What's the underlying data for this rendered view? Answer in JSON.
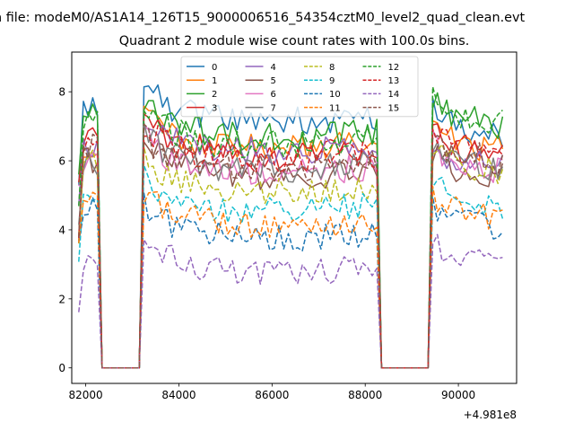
{
  "suptitle": "n file: modeM0/AS1A14_126T15_9000006516_54354cztM0_level2_quad_clean.evt",
  "chart_data": {
    "type": "line",
    "title": "Quadrant 2 module wise count rates with 100.0s bins.",
    "xlabel": "",
    "ylabel": "",
    "x_offset_label": "+4.981e8",
    "x_offset": 498100000,
    "xlim": [
      81700,
      91250
    ],
    "ylim": [
      -0.45,
      9.15
    ],
    "xticks": [
      82000,
      84000,
      86000,
      88000,
      90000
    ],
    "yticks": [
      0,
      2,
      4,
      6,
      8
    ],
    "grid": false,
    "legend_placement": "top-center",
    "legend_columns": 4,
    "gaps": [
      [
        82300,
        83200
      ],
      [
        88300,
        89400
      ]
    ],
    "segments": [
      [
        81850,
        82300
      ],
      [
        83200,
        88300
      ],
      [
        89400,
        91000
      ]
    ],
    "bin_width_s": 100,
    "series": [
      {
        "name": "0",
        "color": "#1f77b4",
        "dash": "solid",
        "seg_means": [
          7.4,
          7.3,
          7.0
        ]
      },
      {
        "name": "1",
        "color": "#ff7f0e",
        "dash": "solid",
        "seg_means": [
          6.5,
          6.5,
          6.6
        ]
      },
      {
        "name": "2",
        "color": "#2ca02c",
        "dash": "solid",
        "seg_means": [
          7.5,
          6.8,
          7.3
        ]
      },
      {
        "name": "3",
        "color": "#d62728",
        "dash": "solid",
        "seg_means": [
          6.6,
          6.3,
          6.4
        ]
      },
      {
        "name": "4",
        "color": "#9467bd",
        "dash": "solid",
        "seg_means": [
          6.3,
          6.4,
          6.1
        ]
      },
      {
        "name": "5",
        "color": "#8c564b",
        "dash": "solid",
        "seg_means": [
          6.0,
          5.7,
          5.8
        ]
      },
      {
        "name": "6",
        "color": "#e377c2",
        "dash": "solid",
        "seg_means": [
          6.1,
          5.8,
          6.0
        ]
      },
      {
        "name": "7",
        "color": "#7f7f7f",
        "dash": "solid",
        "seg_means": [
          6.0,
          5.9,
          6.1
        ]
      },
      {
        "name": "8",
        "color": "#bcbd22",
        "dash": "dashed",
        "seg_means": [
          6.0,
          5.3,
          6.0
        ]
      },
      {
        "name": "9",
        "color": "#17becf",
        "dash": "dashed",
        "seg_means": [
          5.0,
          4.7,
          5.0
        ]
      },
      {
        "name": "10",
        "color": "#1f77b4",
        "dash": "dashed",
        "seg_means": [
          4.6,
          3.9,
          4.3
        ]
      },
      {
        "name": "11",
        "color": "#ff7f0e",
        "dash": "dashed",
        "seg_means": [
          5.0,
          4.3,
          4.6
        ]
      },
      {
        "name": "12",
        "color": "#2ca02c",
        "dash": "dashed",
        "seg_means": [
          7.3,
          6.6,
          7.4
        ]
      },
      {
        "name": "13",
        "color": "#d62728",
        "dash": "dashed",
        "seg_means": [
          6.5,
          6.2,
          6.6
        ]
      },
      {
        "name": "14",
        "color": "#9467bd",
        "dash": "dashed",
        "seg_means": [
          3.2,
          2.9,
          3.3
        ]
      },
      {
        "name": "15",
        "color": "#8c564b",
        "dash": "dashed",
        "seg_means": [
          6.4,
          5.9,
          6.3
        ]
      }
    ]
  }
}
